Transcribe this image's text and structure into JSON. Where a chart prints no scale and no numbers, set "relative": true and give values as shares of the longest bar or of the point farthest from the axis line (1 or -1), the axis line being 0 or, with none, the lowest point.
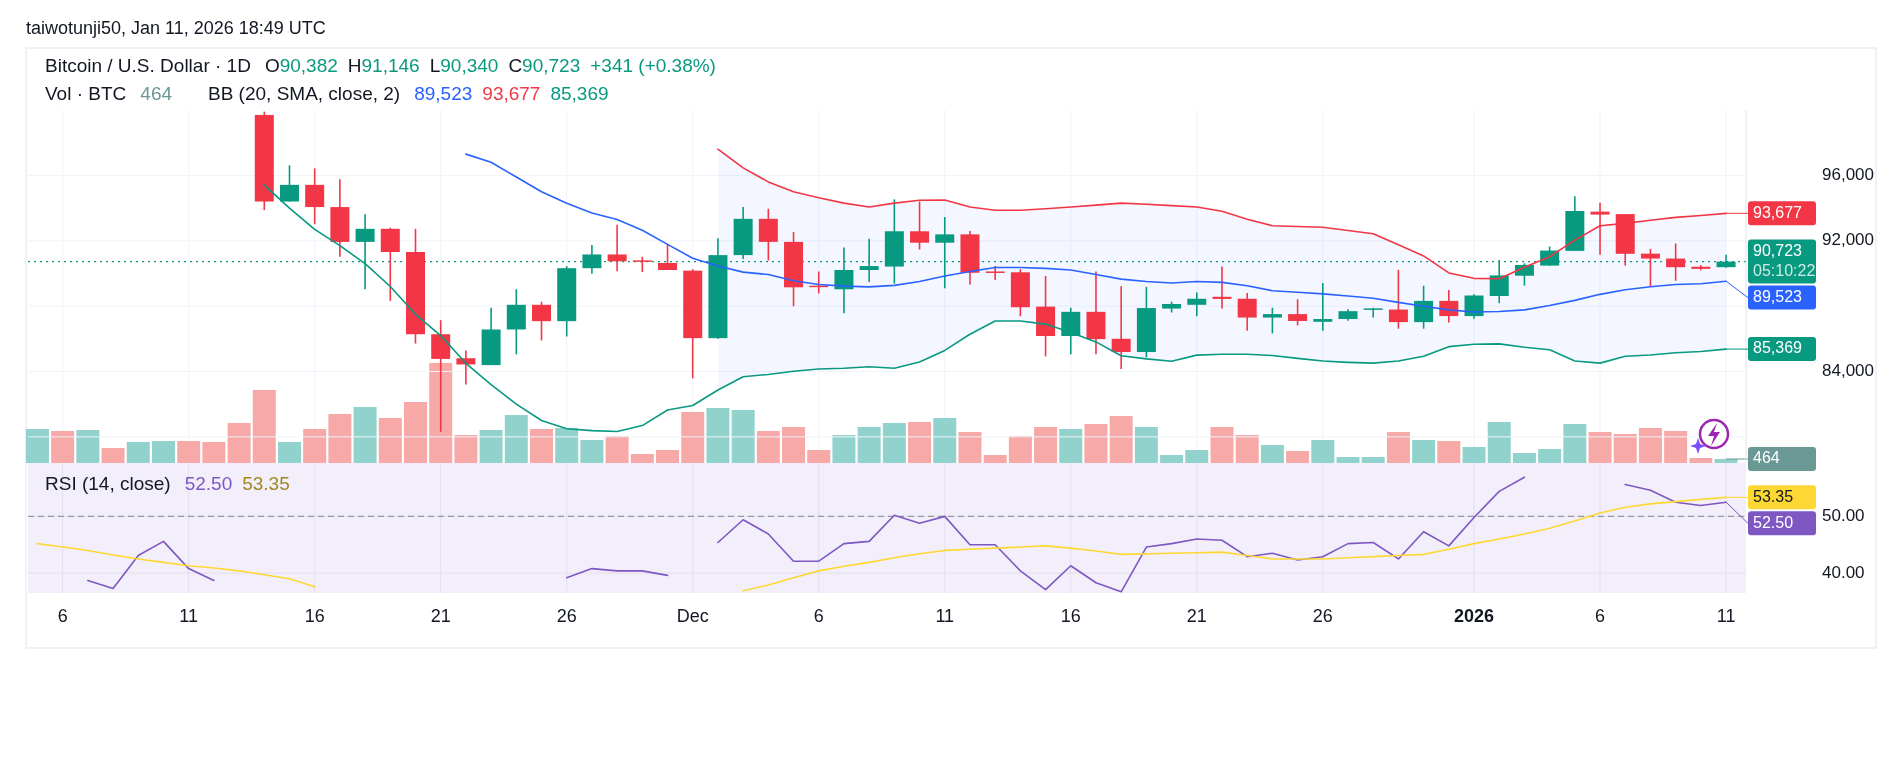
{
  "chart_data": [
    {
      "type": "candlestick",
      "title": "Bitcoin / U.S. Dollar · 1D",
      "subtitle": "taiwotunji50, Jan 11, 2026 18:49 UTC",
      "legend_title": "BB (20, SMA, close, 2)",
      "x": [
        "2025-11-14",
        "2025-11-15",
        "2025-11-16",
        "2025-11-17",
        "2025-11-18",
        "2025-11-19",
        "2025-11-20",
        "2025-11-21",
        "2025-11-22",
        "2025-11-23",
        "2025-11-24",
        "2025-11-25",
        "2025-11-26",
        "2025-11-27",
        "2025-11-28",
        "2025-11-29",
        "2025-11-30",
        "2025-12-01",
        "2025-12-02",
        "2025-12-03",
        "2025-12-04",
        "2025-12-05",
        "2025-12-06",
        "2025-12-07",
        "2025-12-08",
        "2025-12-09",
        "2025-12-10",
        "2025-12-11",
        "2025-12-12",
        "2025-12-13",
        "2025-12-14",
        "2025-12-15",
        "2025-12-16",
        "2025-12-17",
        "2025-12-18",
        "2025-12-19",
        "2025-12-20",
        "2025-12-21",
        "2025-12-22",
        "2025-12-23",
        "2025-12-24",
        "2025-12-25",
        "2025-12-26",
        "2025-12-27",
        "2025-12-28",
        "2025-12-29",
        "2025-12-30",
        "2025-12-31",
        "2026-01-01",
        "2026-01-02",
        "2026-01-03",
        "2026-01-04",
        "2026-01-05",
        "2026-01-06",
        "2026-01-07",
        "2026-01-08",
        "2026-01-09",
        "2026-01-10",
        "2026-01-11"
      ],
      "ohlc": [
        [
          99700,
          99900,
          93870,
          94400
        ],
        [
          94400,
          96620,
          94400,
          95420
        ],
        [
          95420,
          96430,
          93010,
          94060
        ],
        [
          94060,
          95760,
          91020,
          91930
        ],
        [
          91930,
          93620,
          89030,
          92730
        ],
        [
          92730,
          92800,
          88320,
          91310
        ],
        [
          91310,
          92730,
          85710,
          86280
        ],
        [
          86280,
          87140,
          80310,
          84770
        ],
        [
          84810,
          85290,
          83200,
          84430
        ],
        [
          84390,
          87900,
          84390,
          86570
        ],
        [
          86570,
          89030,
          85050,
          88080
        ],
        [
          88080,
          88270,
          85900,
          87080
        ],
        [
          87080,
          90450,
          86140,
          90320
        ],
        [
          90320,
          91740,
          89980,
          91160
        ],
        [
          91160,
          92980,
          90130,
          90740
        ],
        [
          90800,
          91020,
          90080,
          90740
        ],
        [
          90640,
          91780,
          90210,
          90210
        ],
        [
          90170,
          90260,
          83580,
          86040
        ],
        [
          86040,
          92160,
          86000,
          91120
        ],
        [
          91120,
          94060,
          90880,
          93340
        ],
        [
          93340,
          93960,
          90790,
          91930
        ],
        [
          91930,
          92540,
          87990,
          89150
        ],
        [
          89250,
          90120,
          88770,
          89180
        ],
        [
          89030,
          91590,
          87560,
          90210
        ],
        [
          90210,
          92120,
          89470,
          90450
        ],
        [
          90420,
          94530,
          89380,
          92580
        ],
        [
          92580,
          94400,
          91460,
          91880
        ],
        [
          91880,
          93450,
          89090,
          92390
        ],
        [
          92390,
          92600,
          89320,
          90040
        ],
        [
          90120,
          90450,
          89600,
          90070
        ],
        [
          90070,
          90260,
          87380,
          87930
        ],
        [
          87970,
          89850,
          84920,
          86170
        ],
        [
          86170,
          87900,
          85050,
          87650
        ],
        [
          87650,
          90120,
          85050,
          85980
        ],
        [
          86000,
          89220,
          84150,
          85190
        ],
        [
          85190,
          89180,
          84860,
          87880
        ],
        [
          87850,
          88270,
          87610,
          88130
        ],
        [
          88080,
          88840,
          87380,
          88450
        ],
        [
          88570,
          90430,
          87850,
          88440
        ],
        [
          88450,
          88800,
          86490,
          87300
        ],
        [
          87300,
          87900,
          86330,
          87510
        ],
        [
          87510,
          88420,
          86820,
          87090
        ],
        [
          87040,
          89410,
          86490,
          87210
        ],
        [
          87210,
          87810,
          87100,
          87690
        ],
        [
          87790,
          87900,
          87300,
          87860
        ],
        [
          87790,
          90220,
          86620,
          87020
        ],
        [
          87020,
          89250,
          86620,
          88320
        ],
        [
          88320,
          88990,
          86990,
          87390
        ],
        [
          87390,
          88720,
          87230,
          88650
        ],
        [
          88620,
          90820,
          88180,
          89880
        ],
        [
          89860,
          90620,
          89250,
          90520
        ],
        [
          90480,
          91650,
          90480,
          91400
        ],
        [
          91380,
          94720,
          91380,
          93820
        ],
        [
          93780,
          94320,
          91140,
          93600
        ],
        [
          93630,
          93630,
          90480,
          91200
        ],
        [
          91210,
          91500,
          89180,
          90910
        ],
        [
          90910,
          91830,
          89550,
          90380
        ],
        [
          90410,
          90500,
          90200,
          90280
        ],
        [
          90382,
          91146,
          90340,
          90723
        ]
      ],
      "colors": [
        "#f23645",
        "#089981",
        "#f23645",
        "#f23645",
        "#089981",
        "#f23645",
        "#f23645",
        "#f23645",
        "#f23645",
        "#089981",
        "#089981",
        "#f23645",
        "#089981",
        "#089981",
        "#f23645",
        "#f23645",
        "#f23645",
        "#f23645",
        "#089981",
        "#089981",
        "#f23645",
        "#f23645",
        "#f23645",
        "#089981",
        "#089981",
        "#089981",
        "#f23645",
        "#089981",
        "#f23645",
        "#f23645",
        "#f23645",
        "#f23645",
        "#089981",
        "#f23645",
        "#f23645",
        "#089981",
        "#089981",
        "#089981",
        "#f23645",
        "#f23645",
        "#089981",
        "#f23645",
        "#089981",
        "#089981",
        "#089981",
        "#f23645",
        "#089981",
        "#f23645",
        "#089981",
        "#089981",
        "#089981",
        "#089981",
        "#089981",
        "#f23645",
        "#f23645",
        "#f23645",
        "#f23645",
        "#f23645",
        "#089981"
      ],
      "series": [
        {
          "type": "line",
          "color": "#2962ff",
          "upper": [
            null,
            null,
            null,
            null,
            null,
            null,
            null,
            null,
            null,
            null,
            null,
            null,
            null,
            null,
            null,
            null,
            null,
            null,
            97600,
            96460,
            95600,
            95000,
            94630,
            94300,
            94060,
            94300,
            94480,
            94490,
            94060,
            93870,
            93870,
            93960,
            94060,
            94180,
            94300,
            94230,
            94150,
            94060,
            93800,
            93310,
            92920,
            92870,
            92830,
            92630,
            92430,
            91750,
            91070,
            90030,
            89700,
            89670,
            90380,
            91020,
            92040,
            92920,
            93060,
            93250,
            93430,
            93540,
            93677
          ],
          "lower": [
            null,
            null,
            null,
            null,
            null,
            null,
            null,
            null,
            null,
            null,
            null,
            null,
            null,
            null,
            null,
            null,
            null,
            null,
            82870,
            83680,
            83820,
            84010,
            84150,
            84200,
            84290,
            84200,
            84580,
            85290,
            86280,
            87090,
            87090,
            86900,
            86380,
            85810,
            84960,
            84770,
            84630,
            85000,
            85050,
            85050,
            84980,
            84800,
            84640,
            84560,
            84510,
            84640,
            84930,
            85520,
            85670,
            85690,
            85480,
            85330,
            84640,
            84510,
            84930,
            85010,
            85150,
            85220,
            85369
          ],
          "values": [
            null,
            null,
            null,
            null,
            null,
            null,
            null,
            null,
            97300,
            96800,
            95900,
            95000,
            94300,
            93700,
            93300,
            92640,
            91780,
            90930,
            90450,
            90080,
            89930,
            89550,
            89320,
            89220,
            89180,
            89270,
            89510,
            89840,
            90120,
            90360,
            90360,
            90310,
            90210,
            89930,
            89650,
            89510,
            89410,
            89510,
            89450,
            89250,
            88940,
            88850,
            88750,
            88620,
            88480,
            88230,
            87990,
            87770,
            87640,
            87670,
            87770,
            88040,
            88350,
            88720,
            89000,
            89180,
            89320,
            89370,
            89523
          ]
        },
        {
          "type": "line",
          "color": "#f23645",
          "values": [
            null,
            null,
            null,
            null,
            null,
            null,
            null,
            null,
            null,
            null,
            null,
            null,
            null,
            null,
            null,
            null,
            null,
            null,
            97600,
            96460,
            95600,
            95000,
            94630,
            94300,
            94060,
            94300,
            94480,
            94490,
            94060,
            93870,
            93870,
            93960,
            94060,
            94180,
            94300,
            94230,
            94150,
            94060,
            93800,
            93310,
            92920,
            92870,
            92830,
            92630,
            92430,
            91750,
            91070,
            90030,
            89700,
            89670,
            90380,
            91020,
            92040,
            92920,
            93060,
            93250,
            93430,
            93540,
            93677
          ]
        },
        {
          "type": "line",
          "color": "#089981",
          "values": [
            95400,
            94000,
            92700,
            91700,
            90600,
            89200,
            87500,
            86200,
            84500,
            83200,
            82000,
            81000,
            80500,
            80380,
            80330,
            80690,
            81640,
            81920,
            82870,
            83680,
            83820,
            84010,
            84150,
            84200,
            84290,
            84200,
            84580,
            85290,
            86280,
            87090,
            87090,
            86900,
            86380,
            85810,
            84960,
            84770,
            84630,
            85000,
            85050,
            85050,
            84980,
            84800,
            84640,
            84560,
            84510,
            84640,
            84930,
            85520,
            85670,
            85690,
            85480,
            85330,
            84640,
            84510,
            84930,
            85010,
            85150,
            85220,
            85369
          ]
        }
      ],
      "xlim": [
        "2025-11-04T15:00",
        "2026-01-11T19:00"
      ],
      "ylim": [
        78400,
        100000
      ],
      "yticks": [
        {
          "value": 80000,
          "label": null
        },
        {
          "value": 84000,
          "label": "84,000"
        },
        {
          "value": 88000,
          "label": null
        },
        {
          "value": 92000,
          "label": "92,000"
        },
        {
          "value": 96000,
          "label": "96,000"
        }
      ],
      "tick_labels": "y",
      "grid": "y",
      "ref_lines": [
        {
          "axis": "y",
          "value": 90723,
          "label": "90,723\n05:10:22",
          "color": "#089981",
          "line_style": "dotted"
        }
      ],
      "annotations": [
        "O90,382",
        "H91,146",
        "L90,340",
        "C90,723",
        "+341 (+0.38%)",
        "89,523",
        "93,677",
        "85,369",
        {
          "text": "93,677",
          "x": "2026-01-11",
          "y": 93677
        },
        {
          "text": "89,523",
          "x": "2026-01-11",
          "y": 89523
        },
        {
          "text": "85,369",
          "x": "2026-01-11",
          "y": 85369
        }
      ]
    },
    {
      "type": "bar",
      "title": "Vol · BTC",
      "relative": true,
      "tick_labels": false,
      "x": [
        "2025-11-05",
        "2025-11-06",
        "2025-11-07",
        "2025-11-08",
        "2025-11-09",
        "2025-11-10",
        "2025-11-11",
        "2025-11-12",
        "2025-11-13",
        "2025-11-14",
        "2025-11-15",
        "2025-11-16",
        "2025-11-17",
        "2025-11-18",
        "2025-11-19",
        "2025-11-20",
        "2025-11-21",
        "2025-11-22",
        "2025-11-23",
        "2025-11-24",
        "2025-11-25",
        "2025-11-26",
        "2025-11-27",
        "2025-11-28",
        "2025-11-29",
        "2025-11-30",
        "2025-12-01",
        "2025-12-02",
        "2025-12-03",
        "2025-12-04",
        "2025-12-05",
        "2025-12-06",
        "2025-12-07",
        "2025-12-08",
        "2025-12-09",
        "2025-12-10",
        "2025-12-11",
        "2025-12-12",
        "2025-12-13",
        "2025-12-14",
        "2025-12-15",
        "2025-12-16",
        "2025-12-17",
        "2025-12-18",
        "2025-12-19",
        "2025-12-20",
        "2025-12-21",
        "2025-12-22",
        "2025-12-23",
        "2025-12-24",
        "2025-12-25",
        "2025-12-26",
        "2025-12-27",
        "2025-12-28",
        "2025-12-29",
        "2025-12-30",
        "2025-12-31",
        "2026-01-01",
        "2026-01-02",
        "2026-01-03",
        "2026-01-04",
        "2026-01-05",
        "2026-01-06",
        "2026-01-07",
        "2026-01-08",
        "2026-01-09",
        "2026-01-10",
        "2026-01-11"
      ],
      "values": [
        0.34,
        0.32,
        0.33,
        0.15,
        0.21,
        0.22,
        0.22,
        0.21,
        0.4,
        0.73,
        0.21,
        0.34,
        0.49,
        0.56,
        0.45,
        0.61,
        1,
        0.28,
        0.33,
        0.48,
        0.34,
        0.35,
        0.23,
        0.27,
        0.09,
        0.13,
        0.51,
        0.55,
        0.53,
        0.32,
        0.36,
        0.13,
        0.28,
        0.36,
        0.4,
        0.41,
        0.45,
        0.31,
        0.08,
        0.27,
        0.36,
        0.34,
        0.39,
        0.47,
        0.36,
        0.08,
        0.13,
        0.36,
        0.28,
        0.18,
        0.12,
        0.23,
        0.06,
        0.06,
        0.31,
        0.23,
        0.22,
        0.16,
        0.41,
        0.1,
        0.14,
        0.39,
        0.31,
        0.29,
        0.35,
        0.32,
        0.05,
        0.04
      ],
      "colors": [
        "#92d2cc",
        "#f7a9a7",
        "#92d2cc",
        "#f7a9a7",
        "#92d2cc",
        "#92d2cc",
        "#f7a9a7",
        "#f7a9a7",
        "#f7a9a7",
        "#f7a9a7",
        "#92d2cc",
        "#f7a9a7",
        "#f7a9a7",
        "#92d2cc",
        "#f7a9a7",
        "#f7a9a7",
        "#f7a9a7",
        "#f7a9a7",
        "#92d2cc",
        "#92d2cc",
        "#f7a9a7",
        "#92d2cc",
        "#92d2cc",
        "#f7a9a7",
        "#f7a9a7",
        "#f7a9a7",
        "#f7a9a7",
        "#92d2cc",
        "#92d2cc",
        "#f7a9a7",
        "#f7a9a7",
        "#f7a9a7",
        "#92d2cc",
        "#92d2cc",
        "#92d2cc",
        "#f7a9a7",
        "#92d2cc",
        "#f7a9a7",
        "#f7a9a7",
        "#f7a9a7",
        "#f7a9a7",
        "#92d2cc",
        "#f7a9a7",
        "#f7a9a7",
        "#92d2cc",
        "#92d2cc",
        "#92d2cc",
        "#f7a9a7",
        "#f7a9a7",
        "#92d2cc",
        "#f7a9a7",
        "#92d2cc",
        "#92d2cc",
        "#92d2cc",
        "#f7a9a7",
        "#92d2cc",
        "#f7a9a7",
        "#92d2cc",
        "#92d2cc",
        "#92d2cc",
        "#92d2cc",
        "#92d2cc",
        "#f7a9a7",
        "#f7a9a7",
        "#f7a9a7",
        "#f7a9a7",
        "#f7a9a7",
        "#92d2cc"
      ],
      "xlim": [
        "2025-11-04T15:00",
        "2026-01-11T19:00"
      ],
      "annotations": [
        "464",
        {
          "text": "464",
          "x": "2026-01-11",
          "y": 0.04
        }
      ]
    },
    {
      "type": "line",
      "title": "RSI (14, close)",
      "x": [
        "2025-11-05",
        "2025-11-06",
        "2025-11-07",
        "2025-11-08",
        "2025-11-09",
        "2025-11-10",
        "2025-11-11",
        "2025-11-12",
        "2025-11-13",
        "2025-11-14",
        "2025-11-15",
        "2025-11-16",
        "2025-11-26",
        "2025-11-27",
        "2025-11-28",
        "2025-11-29",
        "2025-11-30",
        "2025-12-02",
        "2025-12-03",
        "2025-12-04",
        "2025-12-05",
        "2025-12-06",
        "2025-12-07",
        "2025-12-08",
        "2025-12-09",
        "2025-12-10",
        "2025-12-11",
        "2025-12-12",
        "2025-12-13",
        "2025-12-14",
        "2025-12-15",
        "2025-12-16",
        "2025-12-17",
        "2025-12-18",
        "2025-12-19",
        "2025-12-20",
        "2025-12-21",
        "2025-12-22",
        "2025-12-23",
        "2025-12-24",
        "2025-12-25",
        "2025-12-26",
        "2025-12-27",
        "2025-12-28",
        "2025-12-29",
        "2025-12-30",
        "2025-12-31",
        "2026-01-01",
        "2026-01-02",
        "2026-01-03",
        "2026-01-04",
        "2026-01-05",
        "2026-01-06",
        "2026-01-07",
        "2026-01-08",
        "2026-01-09",
        "2026-01-10",
        "2026-01-11"
      ],
      "series": [
        {
          "color": "#7e57c2",
          "values": [
            null,
            null,
            38.7,
            37.3,
            43.1,
            45.6,
            40.8,
            38.7,
            null,
            null,
            null,
            null,
            39.2,
            40.8,
            40.4,
            40.4,
            39.6,
            45.4,
            49.4,
            46.9,
            42.1,
            42.1,
            45.2,
            45.6,
            50.2,
            48.8,
            50.0,
            45.0,
            45.0,
            40.4,
            37.1,
            41.3,
            38.3,
            36.7,
            44.6,
            45.2,
            46.0,
            45.8,
            42.9,
            43.5,
            42.3,
            42.9,
            45.2,
            45.4,
            42.5,
            47.3,
            44.8,
            49.8,
            54.4,
            56.9,
            null,
            null,
            null,
            55.6,
            54.6,
            52.5,
            51.9,
            52.5
          ]
        },
        {
          "color": "#fdd835",
          "values": [
            45.2,
            44.6,
            44.0,
            43.2,
            42.5,
            41.9,
            41.3,
            40.9,
            40.4,
            39.7,
            39.0,
            37.6,
            null,
            null,
            null,
            null,
            null,
            null,
            36.9,
            37.9,
            39.2,
            40.4,
            41.2,
            41.9,
            42.7,
            43.4,
            44.0,
            44.2,
            44.4,
            44.6,
            44.8,
            44.4,
            43.9,
            43.3,
            43.4,
            43.5,
            43.6,
            43.7,
            43.1,
            42.5,
            42.5,
            42.5,
            42.7,
            42.9,
            43.1,
            43.3,
            44.2,
            45.2,
            46.0,
            46.9,
            47.9,
            49.2,
            50.6,
            51.6,
            52.2,
            52.6,
            53.0,
            53.35
          ]
        }
      ],
      "xlim": [
        "2025-11-04T15:00",
        "2026-01-11T19:00"
      ],
      "xticks": [
        {
          "value": "2025-11-06",
          "label": "6"
        },
        {
          "value": "2025-11-11",
          "label": "11"
        },
        {
          "value": "2025-11-16",
          "label": "16"
        },
        {
          "value": "2025-11-21",
          "label": "21"
        },
        {
          "value": "2025-11-26",
          "label": "26"
        },
        {
          "value": "2025-12-01",
          "label": "Dec"
        },
        {
          "value": "2025-12-06",
          "label": "6"
        },
        {
          "value": "2025-12-11",
          "label": "11"
        },
        {
          "value": "2025-12-16",
          "label": "16"
        },
        {
          "value": "2025-12-21",
          "label": "21"
        },
        {
          "value": "2025-12-26",
          "label": "26"
        },
        {
          "value": "2026-01-01",
          "label": "2026"
        },
        {
          "value": "2026-01-06",
          "label": "6"
        },
        {
          "value": "2026-01-11",
          "label": "11"
        }
      ],
      "ylim": [
        36.5,
        59.4
      ],
      "yticks": [
        {
          "value": 40,
          "label": "40.00"
        },
        {
          "value": 50,
          "label": "50.00"
        }
      ],
      "grid": true,
      "ref_lines": [
        {
          "axis": "y",
          "value": 50,
          "color": "#9598a1",
          "line_style": "dashed"
        }
      ],
      "annotations": [
        "52.50",
        "53.35",
        {
          "text": "53.35",
          "x": "2026-01-11",
          "y": 53.35
        },
        {
          "text": "52.50",
          "x": "2026-01-11",
          "y": 52.5
        }
      ]
    }
  ]
}
